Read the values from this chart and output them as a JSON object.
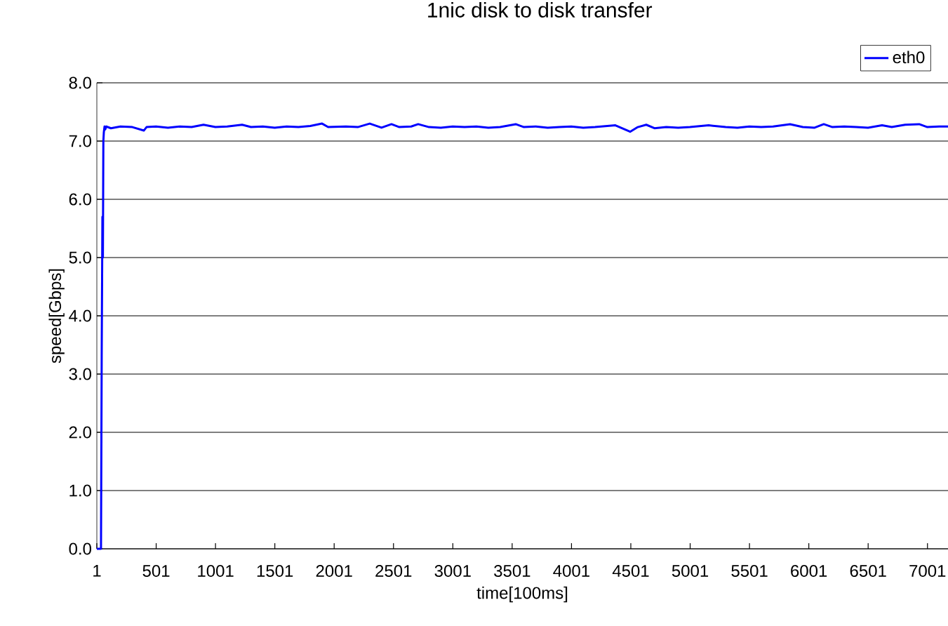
{
  "chart_data": {
    "type": "line",
    "title": "1nic disk to disk transfer",
    "xlabel": "time[100ms]",
    "ylabel": "speed[Gbps]",
    "x": [
      1,
      20,
      36,
      42,
      48,
      52,
      56,
      60,
      66,
      72,
      80,
      120,
      200,
      300,
      397,
      420,
      500,
      600,
      700,
      800,
      900,
      1000,
      1100,
      1225,
      1300,
      1400,
      1500,
      1600,
      1700,
      1800,
      1899,
      1950,
      2100,
      2200,
      2301,
      2400,
      2484,
      2550,
      2650,
      2709,
      2800,
      2900,
      3000,
      3100,
      3200,
      3300,
      3400,
      3531,
      3600,
      3700,
      3800,
      3900,
      4000,
      4100,
      4200,
      4371,
      4495,
      4560,
      4631,
      4700,
      4800,
      4900,
      5000,
      5157,
      5300,
      5400,
      5500,
      5600,
      5700,
      5843,
      5950,
      6050,
      6127,
      6200,
      6300,
      6400,
      6500,
      6618,
      6700,
      6813,
      6931,
      7000,
      7100,
      7174
    ],
    "series": [
      {
        "name": "eth0",
        "color": "#0000ff",
        "values": [
          0,
          0,
          0,
          3.3,
          5.7,
          5.0,
          7.0,
          7.15,
          7.25,
          7.2,
          7.25,
          7.22,
          7.25,
          7.24,
          7.18,
          7.24,
          7.25,
          7.23,
          7.25,
          7.24,
          7.28,
          7.24,
          7.25,
          7.28,
          7.24,
          7.25,
          7.23,
          7.25,
          7.24,
          7.26,
          7.3,
          7.24,
          7.25,
          7.24,
          7.3,
          7.23,
          7.29,
          7.24,
          7.25,
          7.29,
          7.24,
          7.23,
          7.25,
          7.24,
          7.25,
          7.23,
          7.24,
          7.29,
          7.24,
          7.25,
          7.23,
          7.24,
          7.25,
          7.23,
          7.24,
          7.27,
          7.16,
          7.24,
          7.28,
          7.22,
          7.24,
          7.23,
          7.24,
          7.27,
          7.24,
          7.23,
          7.25,
          7.24,
          7.25,
          7.29,
          7.24,
          7.23,
          7.29,
          7.24,
          7.25,
          7.24,
          7.23,
          7.27,
          7.24,
          7.28,
          7.29,
          7.24,
          7.25,
          7.25
        ]
      }
    ],
    "xlim": [
      1,
      7174
    ],
    "xticks": [
      1,
      501,
      1001,
      1501,
      2001,
      2501,
      3001,
      3501,
      4001,
      4501,
      5001,
      5501,
      6001,
      6501,
      7001
    ],
    "ylim": [
      0,
      8
    ],
    "yticks": [
      {
        "value": 0,
        "label": "0.0"
      },
      {
        "value": 1,
        "label": "1.0"
      },
      {
        "value": 2,
        "label": "2.0"
      },
      {
        "value": 3,
        "label": "3.0"
      },
      {
        "value": 4,
        "label": "4.0"
      },
      {
        "value": 5,
        "label": "5.0"
      },
      {
        "value": 6,
        "label": "6.0"
      },
      {
        "value": 7,
        "label": "7.0"
      },
      {
        "value": 8,
        "label": "8.0"
      }
    ],
    "grid": "y",
    "legend": "top right",
    "marker": "none",
    "line_style": "solid"
  }
}
